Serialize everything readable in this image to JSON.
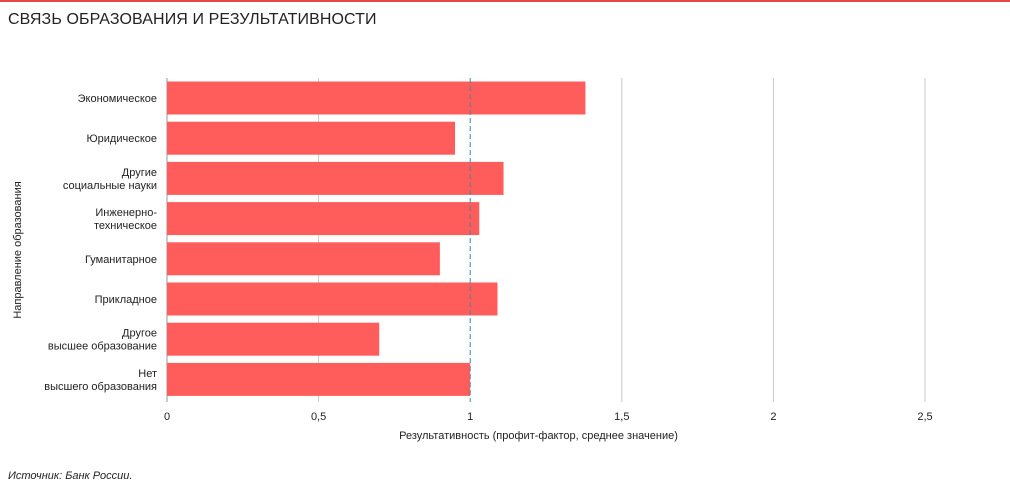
{
  "title": "СВЯЗЬ ОБРАЗОВАНИЯ И РЕЗУЛЬТАТИВНОСТИ",
  "source": "Источник: Банк России.",
  "colors": {
    "bar": "#ff5c5c",
    "accent": "#e64646",
    "mean_line": "#3a8aa3",
    "grid": "#c9c9c9"
  },
  "chart_data": {
    "type": "bar",
    "orientation": "horizontal",
    "categories": [
      [
        "Экономическое"
      ],
      [
        "Юридическое"
      ],
      [
        "Другие",
        "социальные науки"
      ],
      [
        "Инженерно-",
        "техническое"
      ],
      [
        "Гуманитарное"
      ],
      [
        "Прикладное"
      ],
      [
        "Другое",
        "высшее образование"
      ],
      [
        "Нет",
        "высшего образования"
      ]
    ],
    "values": [
      1.38,
      0.95,
      1.11,
      1.03,
      0.9,
      1.09,
      0.7,
      1.0
    ],
    "xlabel": "Результативность (профит-фактор, среднее значение)",
    "ylabel": "Направление образования",
    "xlim": [
      0,
      2.5
    ],
    "xticks": [
      0,
      0.5,
      1,
      1.5,
      2,
      2.5
    ],
    "xtick_labels": [
      "0",
      "0,5",
      "1",
      "1,5",
      "2",
      "2,5"
    ],
    "reference_line": 1,
    "grid": "vertical"
  }
}
